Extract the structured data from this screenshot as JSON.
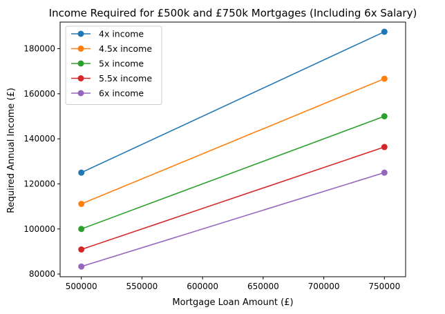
{
  "chart_data": {
    "type": "line",
    "title": "Income Required for £500k and £750k Mortgages (Including 6x Salary)",
    "xlabel": "Mortgage Loan Amount (£)",
    "ylabel": "Required Annual Income (£)",
    "x": [
      500000,
      750000
    ],
    "xlim": [
      482500,
      767500
    ],
    "ylim": [
      78800,
      191800
    ],
    "xticks": [
      500000,
      550000,
      600000,
      650000,
      700000,
      750000
    ],
    "yticks": [
      80000,
      100000,
      120000,
      140000,
      160000,
      180000
    ],
    "xtick_labels": [
      "500000",
      "550000",
      "600000",
      "650000",
      "700000",
      "750000"
    ],
    "ytick_labels": [
      "80000",
      "100000",
      "120000",
      "140000",
      "160000",
      "180000"
    ],
    "grid": false,
    "legend_position": "top-left",
    "series": [
      {
        "name": "4x income",
        "values": [
          125000,
          187500
        ],
        "color": "#1f77b4"
      },
      {
        "name": "4.5x income",
        "values": [
          111111,
          166667
        ],
        "color": "#ff7f0e"
      },
      {
        "name": "5x income",
        "values": [
          100000,
          150000
        ],
        "color": "#2ca02c"
      },
      {
        "name": "5.5x income",
        "values": [
          90909,
          136364
        ],
        "color": "#d62728"
      },
      {
        "name": "6x income",
        "values": [
          83333,
          125000
        ],
        "color": "#9467bd"
      }
    ]
  }
}
